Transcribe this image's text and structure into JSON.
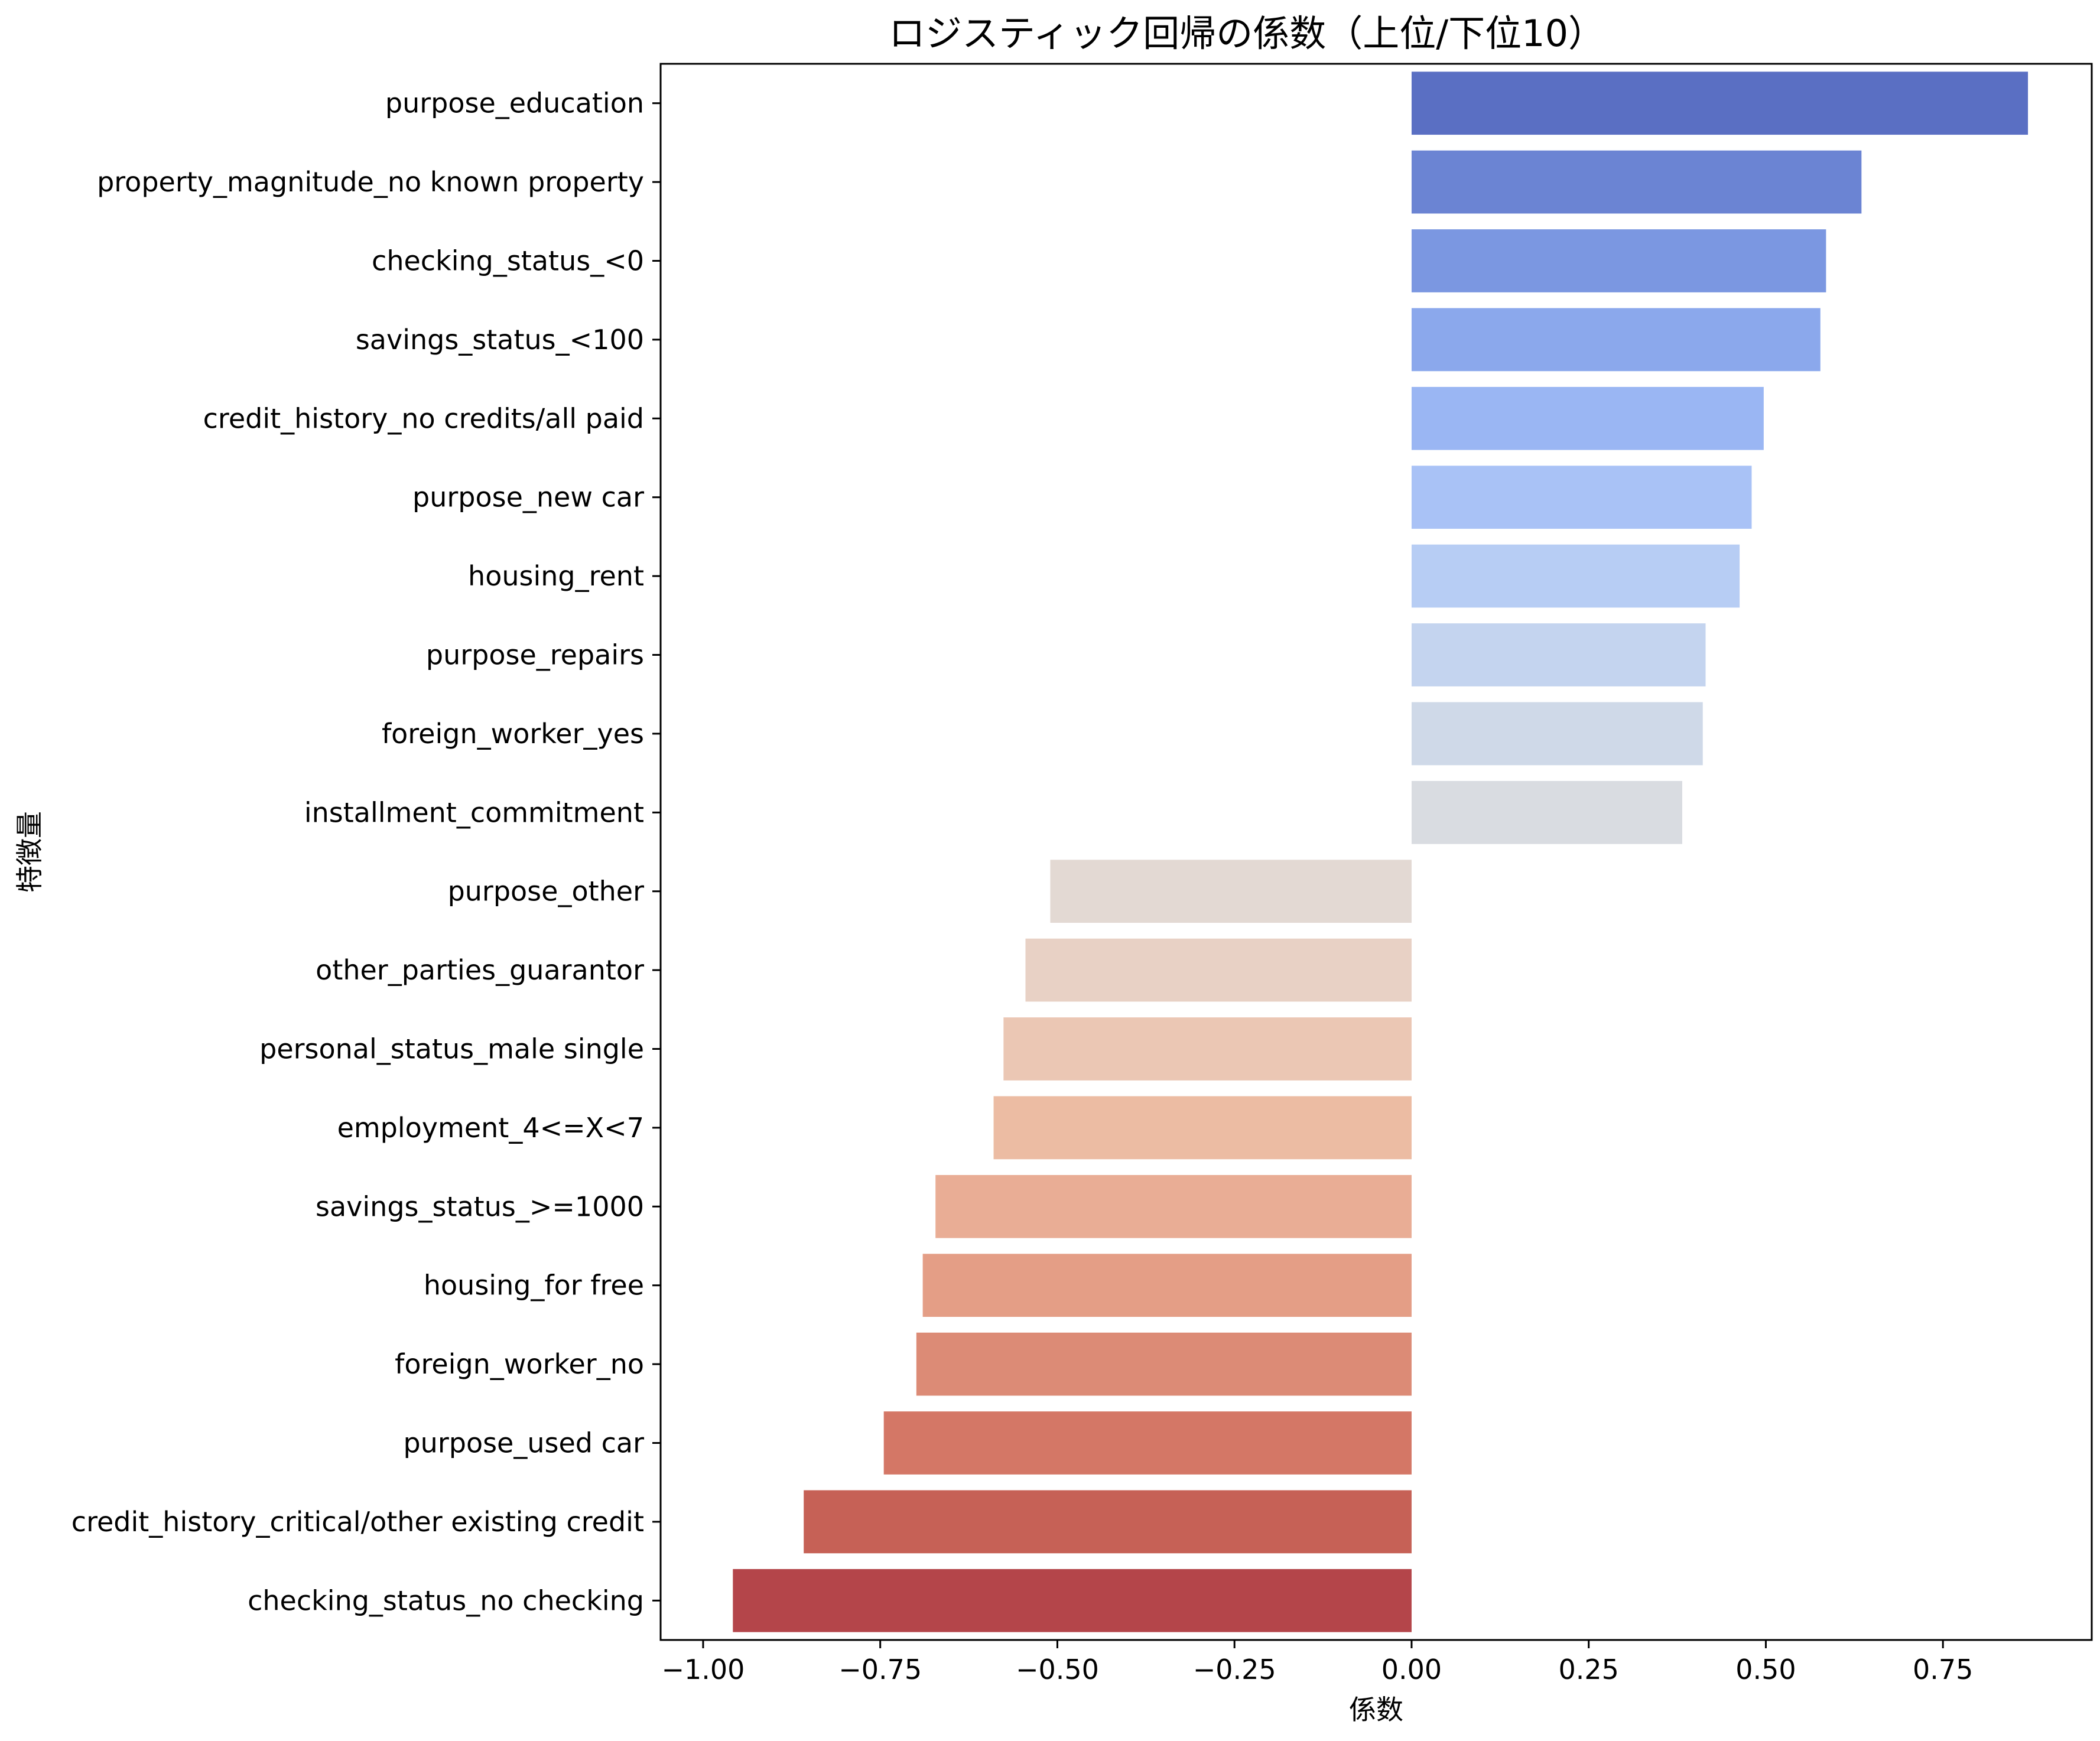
{
  "chart_data": {
    "type": "bar",
    "orientation": "horizontal",
    "title": "ロジスティック回帰の係数（上位/下位10）",
    "xlabel": "係数",
    "ylabel": "特徴量",
    "xlim": [
      -1.06,
      0.96
    ],
    "xticks": [
      -1.0,
      -0.75,
      -0.5,
      -0.25,
      0.0,
      0.25,
      0.5,
      0.75
    ],
    "xtick_labels": [
      "−1.00",
      "−0.75",
      "−0.50",
      "−0.25",
      "0.00",
      "0.25",
      "0.50",
      "0.75"
    ],
    "grid": false,
    "legend": "none",
    "palette": "coolwarm",
    "categories": [
      "purpose_education",
      "property_magnitude_no known property",
      "checking_status_<0",
      "savings_status_<100",
      "credit_history_no credits/all paid",
      "purpose_new car",
      "housing_rent",
      "purpose_repairs",
      "foreign_worker_yes",
      "installment_commitment",
      "purpose_other",
      "other_parties_guarantor",
      "personal_status_male single",
      "employment_4<=X<7",
      "savings_status_>=1000",
      "housing_for free",
      "foreign_worker_no",
      "purpose_used car",
      "credit_history_critical/other existing credit",
      "checking_status_no checking"
    ],
    "values": [
      0.87,
      0.635,
      0.585,
      0.577,
      0.497,
      0.48,
      0.463,
      0.415,
      0.411,
      0.382,
      -0.51,
      -0.545,
      -0.576,
      -0.59,
      -0.672,
      -0.69,
      -0.699,
      -0.745,
      -0.858,
      -0.958
    ],
    "colors": [
      "#5a6fc3",
      "#6b84d3",
      "#7b97e1",
      "#8ba8ec",
      "#9ab6f3",
      "#a9c2f6",
      "#b7cdf4",
      "#c4d4ef",
      "#cfd9e8",
      "#d9dce1",
      "#e3d9d3",
      "#e8d1c5",
      "#ebc7b4",
      "#ecbca3",
      "#e9ad95",
      "#e49e86",
      "#dc8b76",
      "#d47766",
      "#c66156",
      "#b4454a"
    ]
  }
}
